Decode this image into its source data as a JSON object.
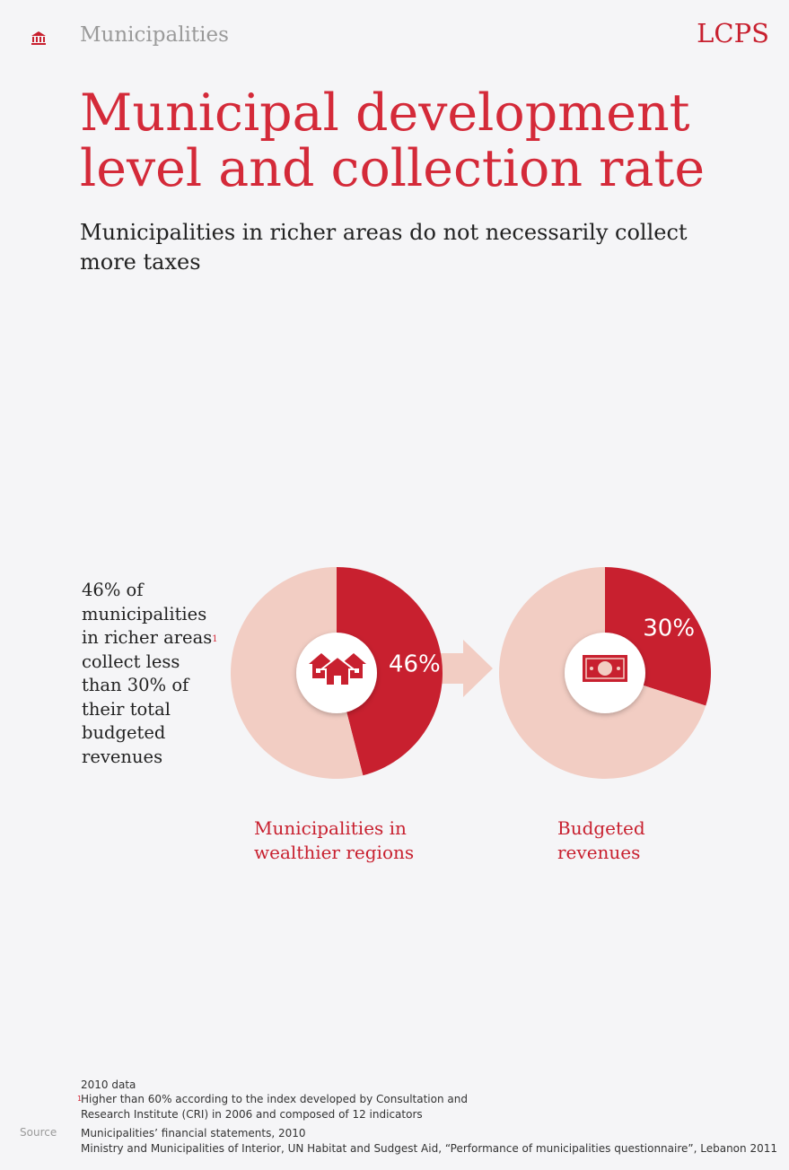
{
  "header": {
    "section_label": "Municipalities",
    "brand": "LCPS",
    "section_icon": "institution-icon"
  },
  "title": "Municipal development level and collection rate",
  "subtitle": "Municipalities in richer areas do not necessarily collect more taxes",
  "side_note": {
    "text": "46% of municipalities in richer areas",
    "footnote_ref": "1",
    "text_after": "collect less than 30% of their total budgeted revenues"
  },
  "colors": {
    "accent": "#c8202f",
    "light": "#f2cdc3",
    "title": "#d42a39"
  },
  "chart_data": [
    {
      "type": "pie",
      "title": "Municipalities in wealthier regions",
      "icon": "houses-icon",
      "slices": [
        {
          "value": 46,
          "label": "46%",
          "color": "#c8202f"
        },
        {
          "value": 54,
          "label": "",
          "color": "#f2cdc3"
        }
      ]
    },
    {
      "type": "pie",
      "title": "Budgeted revenues",
      "icon": "banknote-icon",
      "slices": [
        {
          "value": 30,
          "label": "30%",
          "color": "#c8202f"
        },
        {
          "value": 70,
          "label": "",
          "color": "#f2cdc3"
        }
      ]
    }
  ],
  "footnotes": {
    "data_year": "2010 data",
    "note_marker": "1",
    "note": "Higher than 60% according to the index developed by Consultation and Research Institute (CRI) in 2006 and composed of 12 indicators"
  },
  "source": {
    "label": "Source",
    "items": [
      "Municipalities’ financial statements, 2010",
      "Ministry and Municipalities of Interior, UN Habitat and Sudgest Aid, “Performance of municipalities questionnaire”, Lebanon 2011"
    ]
  }
}
